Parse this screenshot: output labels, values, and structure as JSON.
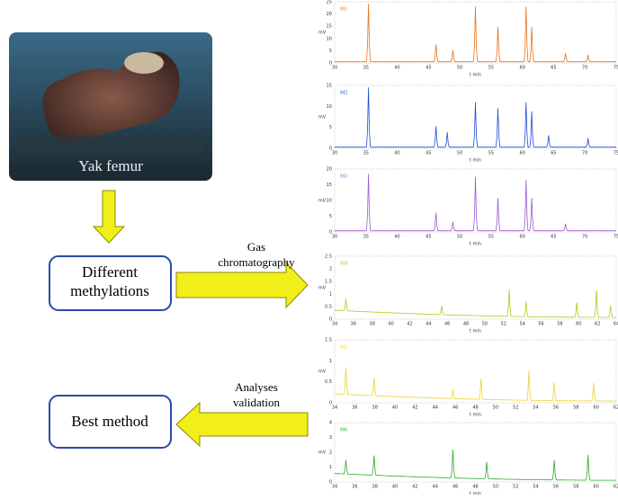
{
  "photo": {
    "caption": "Yak femur"
  },
  "steps": [
    {
      "label": "Different methylations"
    },
    {
      "label": "Best method"
    }
  ],
  "arrows": [
    {
      "label": "Gas chromatography"
    },
    {
      "label": "Analyses validation"
    }
  ],
  "chromatograms": [
    {
      "label": "M1",
      "color": "#e8731a",
      "y_axis": "mV",
      "x_axis": "t min",
      "yticks": [
        "0",
        "5",
        "10",
        "15",
        "20",
        "25"
      ],
      "xticks": [
        "30",
        "35",
        "40",
        "45",
        "50",
        "55",
        "60",
        "65",
        "70",
        "75"
      ]
    },
    {
      "label": "M2",
      "color": "#1f4fd0",
      "y_axis": "mV",
      "x_axis": "t min",
      "yticks": [
        "0",
        "5",
        "10",
        "15"
      ],
      "xticks": [
        "30",
        "35",
        "40",
        "45",
        "50",
        "55",
        "60",
        "65",
        "70",
        "75"
      ]
    },
    {
      "label": "M3",
      "color": "#a05ad0",
      "y_axis": "mV",
      "x_axis": "t min",
      "yticks": [
        "0",
        "5",
        "10",
        "15",
        "20"
      ],
      "xticks": [
        "30",
        "35",
        "40",
        "45",
        "50",
        "55",
        "60",
        "65",
        "70",
        "75"
      ]
    },
    {
      "label": "M4",
      "color": "#b8c81a",
      "y_axis": "mV",
      "x_axis": "t min",
      "yticks": [
        "0",
        "0.5",
        "1",
        "1.5",
        "2",
        "2.5"
      ],
      "xticks": [
        "34",
        "36",
        "38",
        "40",
        "42",
        "44",
        "46",
        "48",
        "50",
        "52",
        "54",
        "56",
        "58",
        "60",
        "62",
        "64"
      ]
    },
    {
      "label": "M5",
      "color": "#f0d22a",
      "y_axis": "mV",
      "x_axis": "t min",
      "yticks": [
        "0",
        "0.5",
        "1",
        "1.5"
      ],
      "xticks": [
        "34",
        "36",
        "38",
        "40",
        "42",
        "44",
        "46",
        "48",
        "50",
        "52",
        "54",
        "56",
        "58",
        "60",
        "62"
      ]
    },
    {
      "label": "M6",
      "color": "#2eaa2e",
      "y_axis": "mV",
      "x_axis": "t min",
      "yticks": [
        "0",
        "1",
        "2",
        "3",
        "4"
      ],
      "xticks": [
        "34",
        "36",
        "38",
        "40",
        "42",
        "44",
        "46",
        "48",
        "50",
        "52",
        "54",
        "56",
        "58",
        "60",
        "62"
      ]
    }
  ]
}
